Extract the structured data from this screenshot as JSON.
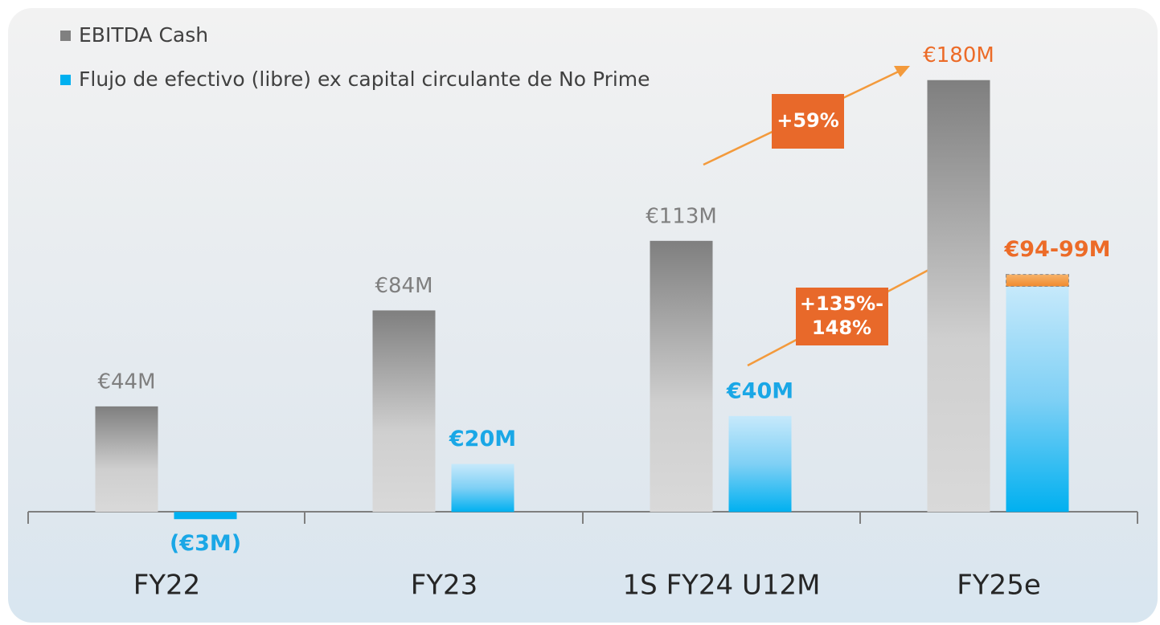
{
  "chart_data": {
    "type": "bar",
    "categories": [
      "FY22",
      "FY23",
      "1S FY24 U12M",
      "FY25e"
    ],
    "series": [
      {
        "name": "EBITDA Cash",
        "color": "#808080",
        "values": [
          44,
          84,
          113,
          180
        ],
        "value_labels": [
          "€44M",
          "€84M",
          "€113M",
          "€180M"
        ],
        "value_label_colors": [
          "#7f7f7f",
          "#7f7f7f",
          "#7f7f7f",
          "#ec6b28"
        ]
      },
      {
        "name": "Flujo de efectivo (libre) ex capital circulante de No Prime",
        "color": "#00b0f0",
        "values": [
          -3,
          20,
          40,
          94
        ],
        "upper": [
          null,
          null,
          null,
          99
        ],
        "value_labels": [
          "(€3M)",
          "€20M",
          "€40M",
          "€94-99M"
        ],
        "value_label_colors": [
          "#1aa7e6",
          "#1aa7e6",
          "#1aa7e6",
          "#ec6b28"
        ]
      }
    ],
    "annotations": [
      {
        "text": [
          "+59%"
        ],
        "color": "#ec6b28"
      },
      {
        "text": [
          "+135%-",
          "148%"
        ],
        "color": "#ec6b28"
      }
    ],
    "ylim": [
      -20,
      200
    ]
  }
}
